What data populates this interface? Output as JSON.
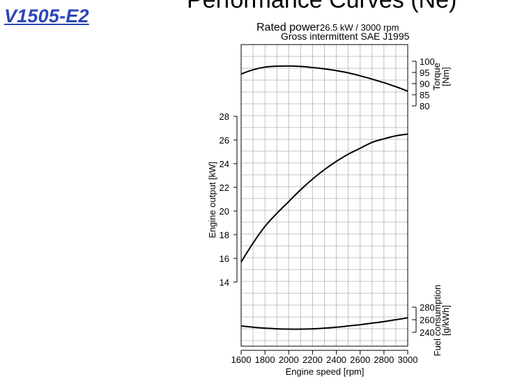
{
  "header": {
    "model": "V1505-E2",
    "title": "Performance Curves (Ne)"
  },
  "chart_data": {
    "type": "line",
    "rated_label": "Rated power",
    "rated_value": "26.5 kW / 3000 rpm",
    "rating_standard": "Gross intermittent SAE J1995",
    "xlabel": "Engine speed [rpm]",
    "xlim": [
      1600,
      3000
    ],
    "x_ticks": [
      1600,
      1800,
      2000,
      2200,
      2400,
      2600,
      2800,
      3000
    ],
    "grid": true,
    "torque": {
      "label": "Torque",
      "unit": "[Nm]",
      "ticks": [
        80,
        85,
        90,
        95,
        100
      ],
      "x": [
        1600,
        1700,
        1800,
        1900,
        2000,
        2100,
        2200,
        2300,
        2400,
        2500,
        2600,
        2700,
        2800,
        2900,
        3000
      ],
      "values": [
        94.3,
        96.2,
        97.4,
        97.8,
        97.9,
        97.7,
        97.2,
        96.6,
        95.8,
        94.8,
        93.5,
        92.0,
        90.4,
        88.6,
        86.6
      ]
    },
    "power": {
      "label": "Engine output [kW]",
      "ticks": [
        14,
        16,
        18,
        20,
        22,
        24,
        26,
        28
      ],
      "x": [
        1600,
        1700,
        1800,
        1900,
        2000,
        2100,
        2200,
        2300,
        2400,
        2500,
        2600,
        2700,
        2800,
        2900,
        3000
      ],
      "values": [
        15.7,
        17.3,
        18.7,
        19.8,
        20.8,
        21.8,
        22.7,
        23.5,
        24.2,
        24.8,
        25.3,
        25.8,
        26.1,
        26.35,
        26.5
      ]
    },
    "fuel": {
      "label": "Fuel consumption",
      "unit": "[g/kWh]",
      "ticks": [
        240,
        260,
        280
      ],
      "x": [
        1600,
        1700,
        1800,
        1900,
        2000,
        2100,
        2200,
        2300,
        2400,
        2500,
        2600,
        2700,
        2800,
        2900,
        3000
      ],
      "values": [
        250,
        248,
        246.5,
        245.5,
        245,
        245,
        245.5,
        246.5,
        248,
        250,
        252,
        254.5,
        257,
        260,
        263
      ]
    }
  }
}
